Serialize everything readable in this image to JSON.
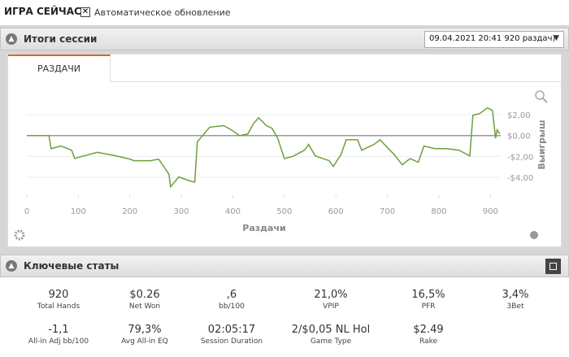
{
  "header": {
    "title": "ИГРА СЕЙЧАС",
    "auto_update": "Автоматическое обновление"
  },
  "session": {
    "title": "Итоги сессии",
    "selector": "09.04.2021 20:41 920 раздач)",
    "tab": "РАЗДАЧИ"
  },
  "chart_data": {
    "type": "line",
    "x_label": "Раздачи",
    "y_label": "Выигрыш",
    "xlim": [
      0,
      920
    ],
    "xticks": [
      0,
      100,
      200,
      300,
      400,
      500,
      600,
      700,
      800,
      900
    ],
    "ylim": [
      -5.7,
      3.4
    ],
    "yticks": [
      {
        "value": 2,
        "label": "$2,00"
      },
      {
        "value": 0,
        "label": "$0,00"
      },
      {
        "value": -2,
        "label": "-$2,00"
      },
      {
        "value": -4,
        "label": "-$4,00"
      }
    ],
    "grid": true,
    "x": [
      0,
      43,
      47,
      66,
      87,
      93,
      106,
      137,
      169,
      200,
      208,
      240,
      256,
      276,
      279,
      295,
      314,
      326,
      331,
      355,
      382,
      397,
      413,
      429,
      440,
      450,
      465,
      476,
      487,
      500,
      516,
      539,
      547,
      560,
      587,
      595,
      610,
      620,
      642,
      650,
      674,
      686,
      697,
      713,
      729,
      744,
      760,
      771,
      792,
      815,
      839,
      860,
      866,
      879,
      894,
      904,
      910,
      913,
      918
    ],
    "series": [
      {
        "color": "#6f9e3c",
        "values": [
          0,
          0,
          -1.25,
          -1.0,
          -1.4,
          -2.2,
          -2.0,
          -1.6,
          -1.9,
          -2.25,
          -2.4,
          -2.4,
          -2.25,
          -3.7,
          -4.9,
          -3.95,
          -4.3,
          -4.45,
          -0.6,
          0.8,
          0.95,
          0.55,
          0,
          0.15,
          1.15,
          1.7,
          0.95,
          0.7,
          -0.25,
          -2.2,
          -2.0,
          -1.4,
          -0.85,
          -1.95,
          -2.4,
          -2.95,
          -1.8,
          -0.4,
          -0.4,
          -1.4,
          -0.85,
          -0.4,
          -1.0,
          -1.8,
          -2.8,
          -2.2,
          -2.55,
          -1.0,
          -1.25,
          -1.25,
          -1.4,
          -1.95,
          1.95,
          2.1,
          2.65,
          2.4,
          -0.25,
          0.55,
          0.15
        ]
      }
    ]
  },
  "stats": {
    "title": "Ключевые статы",
    "items": [
      {
        "value": "920",
        "label": "Total Hands"
      },
      {
        "value": "$0.26",
        "label": "Net Won"
      },
      {
        "value": ",6",
        "label": "bb/100"
      },
      {
        "value": "21,0%",
        "label": "VPIP"
      },
      {
        "value": "16,5%",
        "label": "PFR"
      },
      {
        "value": "3,4%",
        "label": "3Bet"
      },
      {
        "value": "-1,1",
        "label": "All-in Adj bb/100"
      },
      {
        "value": "79,3%",
        "label": "Avg All-in EQ"
      },
      {
        "value": "02:05:17",
        "label": "Session Duration"
      },
      {
        "value": "2/$0,05 NL Hol",
        "label": "Game Type"
      },
      {
        "value": "$2.49",
        "label": "Rake"
      }
    ]
  }
}
